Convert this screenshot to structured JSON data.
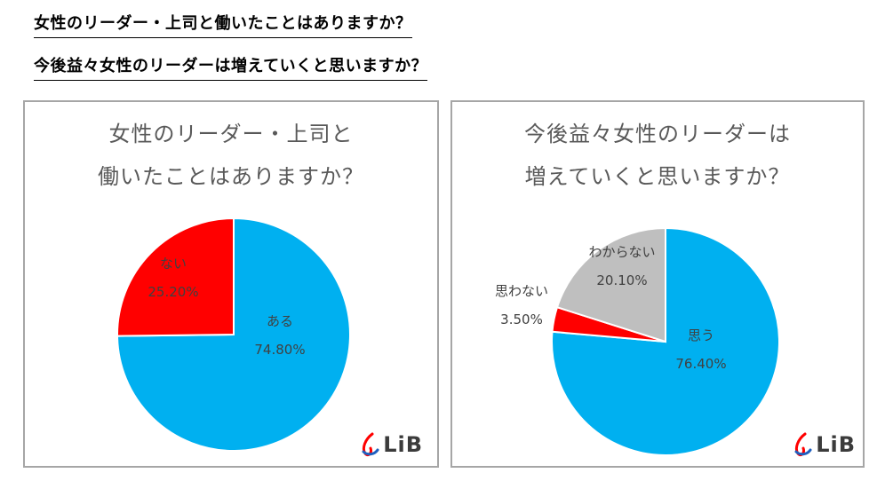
{
  "headings": {
    "q1": "女性のリーダー・上司と働いたことはありますか？",
    "q2": "今後益々女性のリーダーは増えていくと思いますか？"
  },
  "logo_text": "LiB",
  "colors": {
    "blue": "#00b0f0",
    "red": "#ff0000",
    "gray": "#bfbfbf",
    "border": "#a6a6a6"
  },
  "chart_data": [
    {
      "type": "pie",
      "title_lines": [
        "女性のリーダー・上司と",
        "働いたことはありますか？"
      ],
      "slices": [
        {
          "label": "ある",
          "value_label": "74.80%",
          "value": 74.8,
          "color": "#00b0f0"
        },
        {
          "label": "ない",
          "value_label": "25.20%",
          "value": 25.2,
          "color": "#ff0000"
        }
      ]
    },
    {
      "type": "pie",
      "title_lines": [
        "今後益々女性のリーダーは",
        "増えていくと思いますか？"
      ],
      "slices": [
        {
          "label": "思う",
          "value_label": "76.40%",
          "value": 76.4,
          "color": "#00b0f0"
        },
        {
          "label": "思わない",
          "value_label": "3.50%",
          "value": 3.5,
          "color": "#ff0000"
        },
        {
          "label": "わからない",
          "value_label": "20.10%",
          "value": 20.1,
          "color": "#bfbfbf"
        }
      ]
    }
  ]
}
